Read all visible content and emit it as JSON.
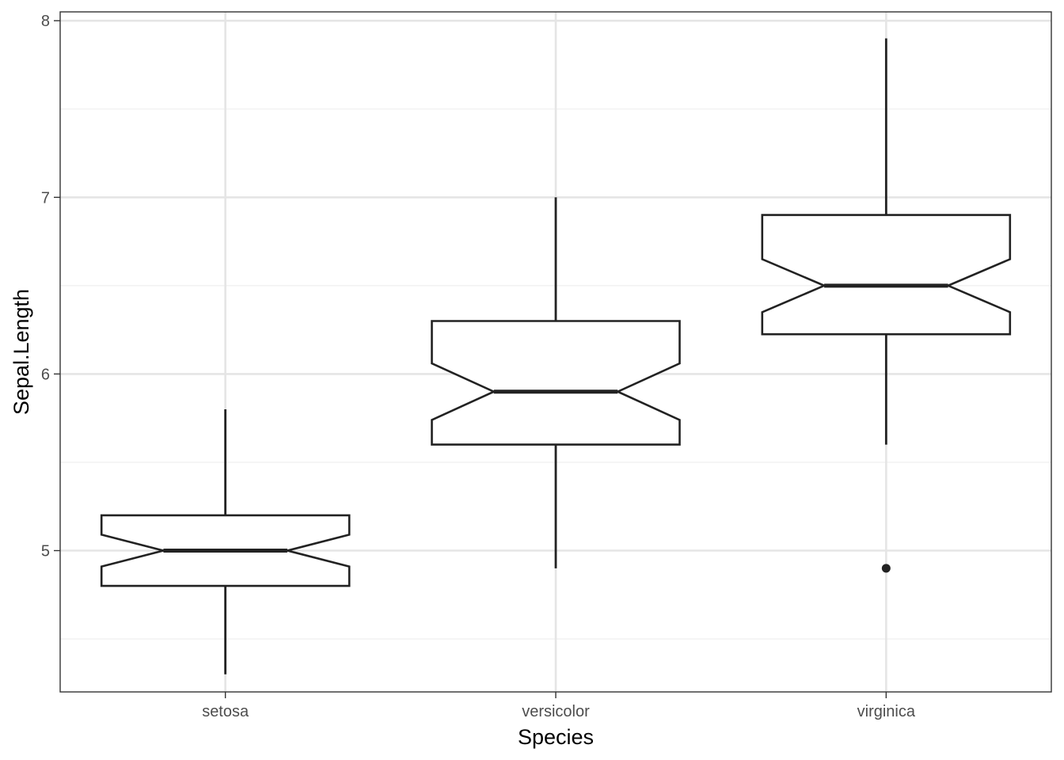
{
  "chart_data": {
    "type": "boxplot",
    "notched": true,
    "xlabel": "Species",
    "ylabel": "Sepal.Length",
    "categories": [
      "setosa",
      "versicolor",
      "virginica"
    ],
    "ylim": [
      4.2,
      8.05
    ],
    "y_ticks": [
      5,
      6,
      7,
      8
    ],
    "y_minor_ticks": [
      4.5,
      5.5,
      6.5,
      7.5
    ],
    "grid": true,
    "boxes": [
      {
        "category": "setosa",
        "min": 4.3,
        "q1": 4.8,
        "median": 5.0,
        "q3": 5.2,
        "max": 5.8,
        "notch_low": 4.91,
        "notch_high": 5.09,
        "outliers": []
      },
      {
        "category": "versicolor",
        "min": 4.9,
        "q1": 5.6,
        "median": 5.9,
        "q3": 6.3,
        "max": 7.0,
        "notch_low": 5.74,
        "notch_high": 6.06,
        "outliers": []
      },
      {
        "category": "virginica",
        "min": 5.6,
        "q1": 6.225,
        "median": 6.5,
        "q3": 6.9,
        "max": 7.9,
        "notch_low": 6.35,
        "notch_high": 6.65,
        "outliers": [
          4.9
        ]
      }
    ],
    "colors": {
      "panel_border": "#333333",
      "grid_major": "#e5e5e5",
      "grid_minor": "#f0f0f0",
      "box_stroke": "#222222",
      "tick_text": "#4d4d4d",
      "axis_title": "#000000"
    }
  }
}
